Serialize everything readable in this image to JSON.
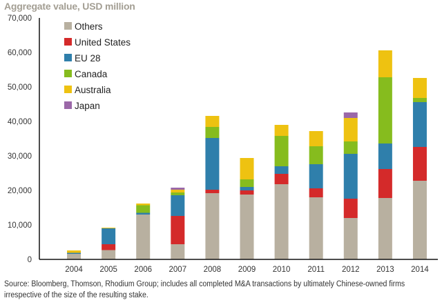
{
  "chart_data": {
    "type": "bar",
    "stacked": true,
    "title": "Aggregate value, USD million",
    "xlabel": "",
    "ylabel": "Aggregate value, USD million",
    "ylim": [
      0,
      70000
    ],
    "yticks": [
      0,
      10000,
      20000,
      30000,
      40000,
      50000,
      60000,
      70000
    ],
    "ytick_labels": [
      "0",
      "10,000",
      "20,000",
      "30,000",
      "40,000",
      "50,000",
      "60,000",
      "70,000"
    ],
    "grid": false,
    "legend_position": "top-left",
    "categories": [
      "2004",
      "2005",
      "2006",
      "2007",
      "2008",
      "2009",
      "2010",
      "2011",
      "2012",
      "2013",
      "2014"
    ],
    "series": [
      {
        "name": "Others",
        "color": "#b8b0a0",
        "values": [
          1600,
          2700,
          13000,
          4400,
          19200,
          18800,
          21800,
          18000,
          12000,
          17800,
          22800
        ]
      },
      {
        "name": "United States",
        "color": "#d42a2a",
        "values": [
          0,
          1700,
          0,
          8200,
          1000,
          1200,
          3000,
          2600,
          5600,
          8400,
          9800
        ]
      },
      {
        "name": "EU 28",
        "color": "#2f7fab",
        "values": [
          300,
          4600,
          500,
          6000,
          15000,
          1000,
          2200,
          7000,
          13000,
          7400,
          13000
        ]
      },
      {
        "name": "Canada",
        "color": "#86bc1e",
        "values": [
          0,
          0,
          2200,
          800,
          3200,
          2200,
          8800,
          5200,
          3600,
          19200,
          1200
        ]
      },
      {
        "name": "Australia",
        "color": "#eec211",
        "values": [
          700,
          200,
          500,
          800,
          3200,
          6200,
          3200,
          4400,
          6800,
          7800,
          5800
        ]
      },
      {
        "name": "Japan",
        "color": "#9b68a8",
        "values": [
          0,
          0,
          0,
          600,
          0,
          0,
          0,
          0,
          1600,
          0,
          0
        ]
      }
    ]
  },
  "source": "Source: Bloomberg, Thomson, Rhodium Group; includes all completed M&A transactions by ultimately Chinese-owned firms irrespective of the size of the resulting stake."
}
